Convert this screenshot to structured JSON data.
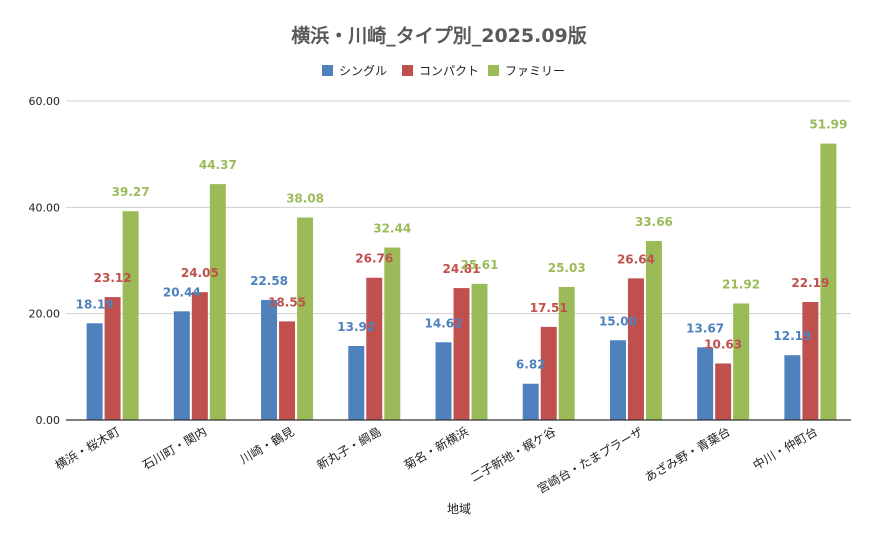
{
  "chart_data": {
    "type": "bar",
    "title": "横浜・川崎_タイプ別_2025.09版",
    "xlabel": "地域",
    "ylabel": "",
    "ylim": [
      0,
      60
    ],
    "yticks": [
      "0.00",
      "20.00",
      "40.00",
      "60.00"
    ],
    "grid": true,
    "legend_position": "top",
    "categories": [
      "横浜・桜木町",
      "石川町・関内",
      "川崎・鶴見",
      "新丸子・綱島",
      "菊名・新横浜",
      "二子新地・梶ケ谷",
      "宮崎台・たまプラーザ",
      "あざみ野・青葉台",
      "中川・仲町台"
    ],
    "series": [
      {
        "name": "シングル",
        "color": "#4f81bd",
        "values": [
          18.19,
          20.44,
          22.58,
          13.92,
          14.62,
          6.82,
          15.0,
          13.67,
          12.19
        ],
        "labels": [
          "18.19",
          "20.44",
          "22.58",
          "13.92",
          "14.62",
          "6.82",
          "15.00",
          "13.67",
          "12.19"
        ]
      },
      {
        "name": "コンパクト",
        "color": "#c0504d",
        "values": [
          23.12,
          24.05,
          18.55,
          26.76,
          24.81,
          17.51,
          26.64,
          10.63,
          22.19
        ],
        "labels": [
          "23.12",
          "24.05",
          "18.55",
          "26.76",
          "24.81",
          "17.51",
          "26.64",
          "10.63",
          "22.19"
        ]
      },
      {
        "name": "ファミリー",
        "color": "#9bbb59",
        "values": [
          39.27,
          44.37,
          38.08,
          32.44,
          25.61,
          25.03,
          33.66,
          21.92,
          51.99
        ],
        "labels": [
          "39.27",
          "44.37",
          "38.08",
          "32.44",
          "25.61",
          "25.03",
          "33.66",
          "21.92",
          "51.99"
        ]
      }
    ]
  }
}
